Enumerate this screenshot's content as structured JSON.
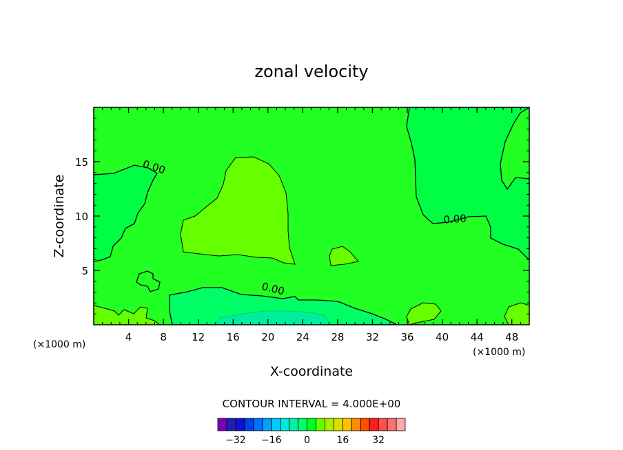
{
  "chart_data": {
    "type": "heatmap",
    "title": "zonal velocity",
    "xlabel": "X-coordinate",
    "ylabel": "Z-coordinate",
    "x_unit_label": "(×1000 m)",
    "z_unit_label": "(×1000 m)",
    "xlim": [
      0,
      50
    ],
    "ylim": [
      0,
      20
    ],
    "x_ticks": [
      4,
      8,
      12,
      16,
      20,
      24,
      28,
      32,
      36,
      40,
      44,
      48
    ],
    "y_ticks": [
      5,
      10,
      15
    ],
    "contour_labels": [
      {
        "text": "0.00",
        "x": 6.8,
        "z": 14.2,
        "rotate": 18
      },
      {
        "text": "0.00",
        "x": 41.5,
        "z": 9.4,
        "rotate": -4
      },
      {
        "text": "0.00",
        "x": 20.5,
        "z": 3.0,
        "rotate": 14
      }
    ],
    "contour_interval_text": "CONTOUR INTERVAL = 4.000E+00",
    "colorbar": {
      "colors": [
        "#7a00b8",
        "#1e1eb4",
        "#1010d0",
        "#0040f0",
        "#0070ff",
        "#00a0ff",
        "#00ccff",
        "#00e8d8",
        "#00f0a8",
        "#00ff66",
        "#00ff22",
        "#66ff00",
        "#aaee00",
        "#dddd00",
        "#ffc000",
        "#ff8c00",
        "#ff5000",
        "#ff1e1e",
        "#ff5050",
        "#ff7070",
        "#ffa8a8"
      ],
      "tick_labels": [
        "−32",
        "−16",
        "0",
        "16",
        "32"
      ]
    }
  }
}
